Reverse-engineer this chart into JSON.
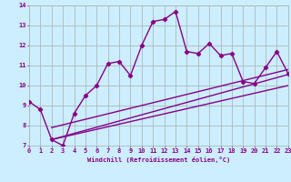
{
  "title": "",
  "xlabel": "Windchill (Refroidissement éolien,°C)",
  "ylabel": "",
  "bg_color": "#cceeff",
  "grid_color": "#aabbbb",
  "line_color": "#880088",
  "xmin": 0,
  "xmax": 23,
  "ymin": 7,
  "ymax": 14,
  "yticks": [
    7,
    8,
    9,
    10,
    11,
    12,
    13,
    14
  ],
  "xticks": [
    0,
    1,
    2,
    3,
    4,
    5,
    6,
    7,
    8,
    9,
    10,
    11,
    12,
    13,
    14,
    15,
    16,
    17,
    18,
    19,
    20,
    21,
    22,
    23
  ],
  "series1_x": [
    0,
    1,
    2,
    3,
    4,
    5,
    6,
    7,
    8,
    9,
    10,
    11,
    12,
    13,
    14,
    15,
    16,
    17,
    18,
    19,
    20,
    21,
    22,
    23
  ],
  "series1_y": [
    9.2,
    8.8,
    7.3,
    7.0,
    8.6,
    9.5,
    10.0,
    11.1,
    11.2,
    10.5,
    12.0,
    13.2,
    13.3,
    13.7,
    11.7,
    11.6,
    12.1,
    11.5,
    11.6,
    10.2,
    10.1,
    10.9,
    11.7,
    10.6
  ],
  "line1_x": [
    2,
    23
  ],
  "line1_y": [
    7.3,
    10.55
  ],
  "line2_x": [
    2,
    23
  ],
  "line2_y": [
    7.3,
    10.0
  ],
  "line3_x": [
    2,
    23
  ],
  "line3_y": [
    7.9,
    10.8
  ],
  "marker": "D",
  "marker_size": 2.2,
  "line_width": 1.0
}
